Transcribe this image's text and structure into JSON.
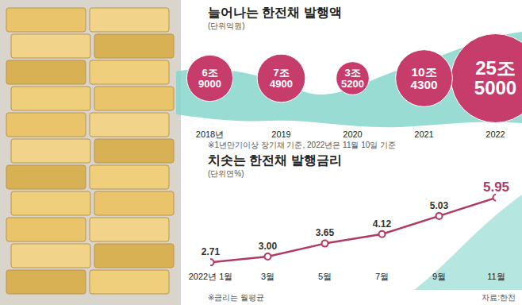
{
  "chart_data": [
    {
      "type": "bubble",
      "title": "늘어나는 한전채 발행액",
      "subtitle": "(단위억원)",
      "categories": [
        "2018년",
        "2019",
        "2020",
        "2021",
        "2022"
      ],
      "values": [
        69000,
        74900,
        35200,
        104300,
        255000
      ],
      "value_labels": [
        "6조 9000",
        "7조 4900",
        "3조 5200",
        "10조 4300",
        "25조 5000"
      ],
      "color": "#c63d6b",
      "data_labels": true,
      "tick_labels": "x",
      "annotations": [
        "※1년만기이상 장기채 기준, 2022년은 11월 10일 기준"
      ]
    },
    {
      "type": "line",
      "title": "치솟는 한전채 발행금리",
      "subtitle": "(단위연%)",
      "categories": [
        "2022년 1월",
        "3월",
        "5월",
        "7월",
        "9월",
        "11월"
      ],
      "values": [
        2.71,
        3.0,
        3.65,
        4.12,
        5.03,
        5.95
      ],
      "value_labels": [
        "2.71",
        "3.00",
        "3.65",
        "4.12",
        "5.03",
        "5.95"
      ],
      "color": "#b03a62",
      "marker": "circle",
      "data_labels": true,
      "tick_labels": "x",
      "ylim": [
        2.5,
        6.2
      ],
      "annotations": [
        "※금리는 월평균",
        "자료:한전"
      ]
    }
  ]
}
